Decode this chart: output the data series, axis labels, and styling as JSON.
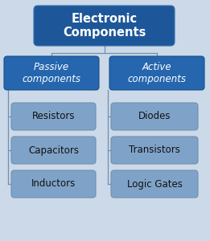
{
  "title": "Electronic\nComponents",
  "background_color": "#ccd9e8",
  "title_box_color": "#1e5799",
  "title_text_color": "#ffffff",
  "category_box_color": "#2566ae",
  "category_text_color": "#ffffff",
  "item_box_color": "#7fa3c8",
  "item_box_edge": "#7090b0",
  "item_text_color": "#111111",
  "left_category": "Passive\ncomponents",
  "right_category": "Active\ncomponents",
  "left_items": [
    "Resistors",
    "Capacitors",
    "Inductors"
  ],
  "right_items": [
    "Diodes",
    "Transistors",
    "Logic Gates"
  ],
  "line_color": "#7090b0",
  "fig_w": 2.61,
  "fig_h": 3.0,
  "dpi": 100
}
